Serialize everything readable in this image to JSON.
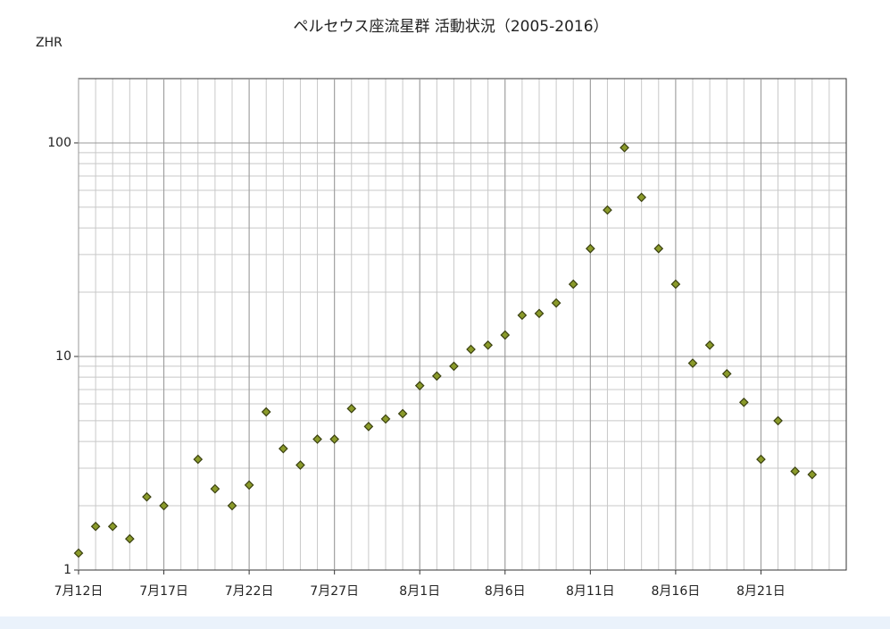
{
  "chart_data": {
    "type": "scatter",
    "title": "ペルセウス座流星群 活動状況（2005-2016）",
    "y_label": "ZHR",
    "categories": [
      "7月12日",
      null,
      null,
      null,
      null,
      "7月17日",
      null,
      null,
      null,
      null,
      "7月22日",
      null,
      null,
      null,
      null,
      "7月27日",
      null,
      null,
      null,
      null,
      "8月1日",
      null,
      null,
      null,
      null,
      "8月6日",
      null,
      null,
      null,
      null,
      "8月11日",
      null,
      null,
      null,
      null,
      "8月16日",
      null,
      null,
      null,
      null,
      "8月21日",
      null,
      null,
      null
    ],
    "values": [
      1.2,
      1.6,
      1.6,
      1.4,
      2.2,
      2.0,
      null,
      3.3,
      2.4,
      2.0,
      2.5,
      5.5,
      3.7,
      3.1,
      4.1,
      4.1,
      5.7,
      4.7,
      5.1,
      5.4,
      7.3,
      8.1,
      9.0,
      10.8,
      11.3,
      12.6,
      15.6,
      15.9,
      17.8,
      21.8,
      32,
      48.5,
      95,
      55.6,
      32,
      21.8,
      9.3,
      11.3,
      8.3,
      6.1,
      3.3,
      5.0,
      2.9,
      2.8
    ],
    "color": "#8a9a2a",
    "log_y": true,
    "ylim": [
      1,
      200
    ],
    "yticks": [
      1,
      10,
      100
    ],
    "grid": true
  }
}
